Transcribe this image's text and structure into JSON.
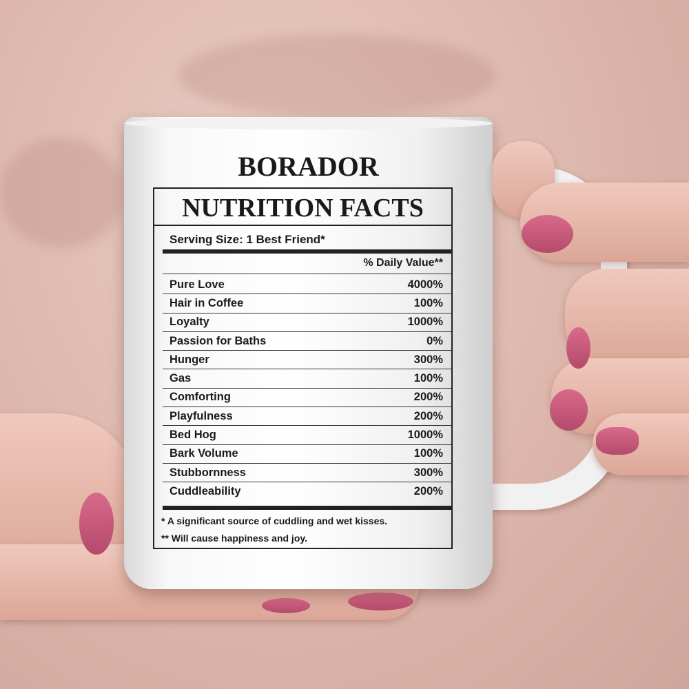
{
  "mug": {
    "title": "BORADOR",
    "label": {
      "heading": "NUTRITION FACTS",
      "serving_size": "Serving Size:  1 Best Friend*",
      "daily_value_header": "% Daily Value**",
      "rows": [
        {
          "name": "Pure Love",
          "value": "4000%"
        },
        {
          "name": "Hair in Coffee",
          "value": "100%"
        },
        {
          "name": "Loyalty",
          "value": "1000%"
        },
        {
          "name": "Passion for Baths",
          "value": "0%"
        },
        {
          "name": "Hunger",
          "value": "300%"
        },
        {
          "name": "Gas",
          "value": "100%"
        },
        {
          "name": "Comforting",
          "value": "200%"
        },
        {
          "name": "Playfulness",
          "value": "200%"
        },
        {
          "name": "Bed Hog",
          "value": "1000%"
        },
        {
          "name": "Bark Volume",
          "value": "100%"
        },
        {
          "name": "Stubbornness",
          "value": "300%"
        },
        {
          "name": "Cuddleability",
          "value": "200%"
        }
      ],
      "footnote_1": "* A significant source of cuddling and wet kisses.",
      "footnote_2": "** Will cause happiness and joy."
    }
  },
  "colors": {
    "background": "#dcb6ab",
    "mug": "#ffffff",
    "nails": "#c85878",
    "text": "#1a1a1a"
  }
}
